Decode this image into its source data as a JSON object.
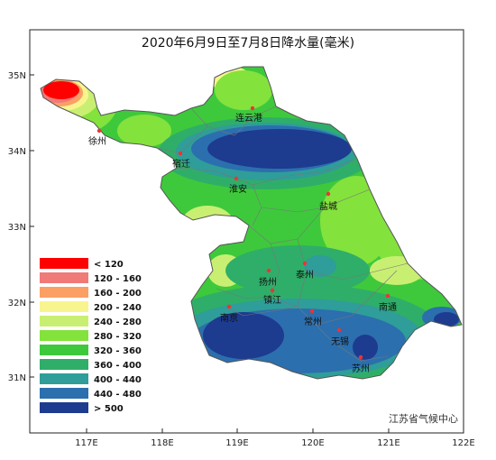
{
  "title": "2020年6月9日至7月8日降水量(毫米)",
  "credit": "江苏省气候中心",
  "lat_ticks": [
    "35N",
    "34N",
    "33N",
    "32N",
    "31N"
  ],
  "lon_ticks": [
    "117E",
    "118E",
    "119E",
    "120E",
    "121E",
    "122E"
  ],
  "cities": [
    {
      "name": "连云港"
    },
    {
      "name": "徐州"
    },
    {
      "name": "宿迁"
    },
    {
      "name": "淮安"
    },
    {
      "name": "盐城"
    },
    {
      "name": "扬州"
    },
    {
      "name": "泰州"
    },
    {
      "name": "镇江"
    },
    {
      "name": "南京"
    },
    {
      "name": "常州"
    },
    {
      "name": "南通"
    },
    {
      "name": "无锡"
    },
    {
      "name": "苏州"
    }
  ],
  "legend": [
    {
      "label": "< 120",
      "color": "#ff0000"
    },
    {
      "label": "120 - 160",
      "color": "#f07a78"
    },
    {
      "label": "160 - 200",
      "color": "#fb9f65"
    },
    {
      "label": "200 - 240",
      "color": "#f9f58e"
    },
    {
      "label": "240 - 280",
      "color": "#c9ef72"
    },
    {
      "label": "280 - 320",
      "color": "#84e23c"
    },
    {
      "label": "320 - 360",
      "color": "#3ec93c"
    },
    {
      "label": "360 - 400",
      "color": "#2fae69"
    },
    {
      "label": "400 - 440",
      "color": "#2f9d99"
    },
    {
      "label": "440 - 480",
      "color": "#2b6fae"
    },
    {
      "label": "> 500",
      "color": "#1d3b8f"
    }
  ]
}
